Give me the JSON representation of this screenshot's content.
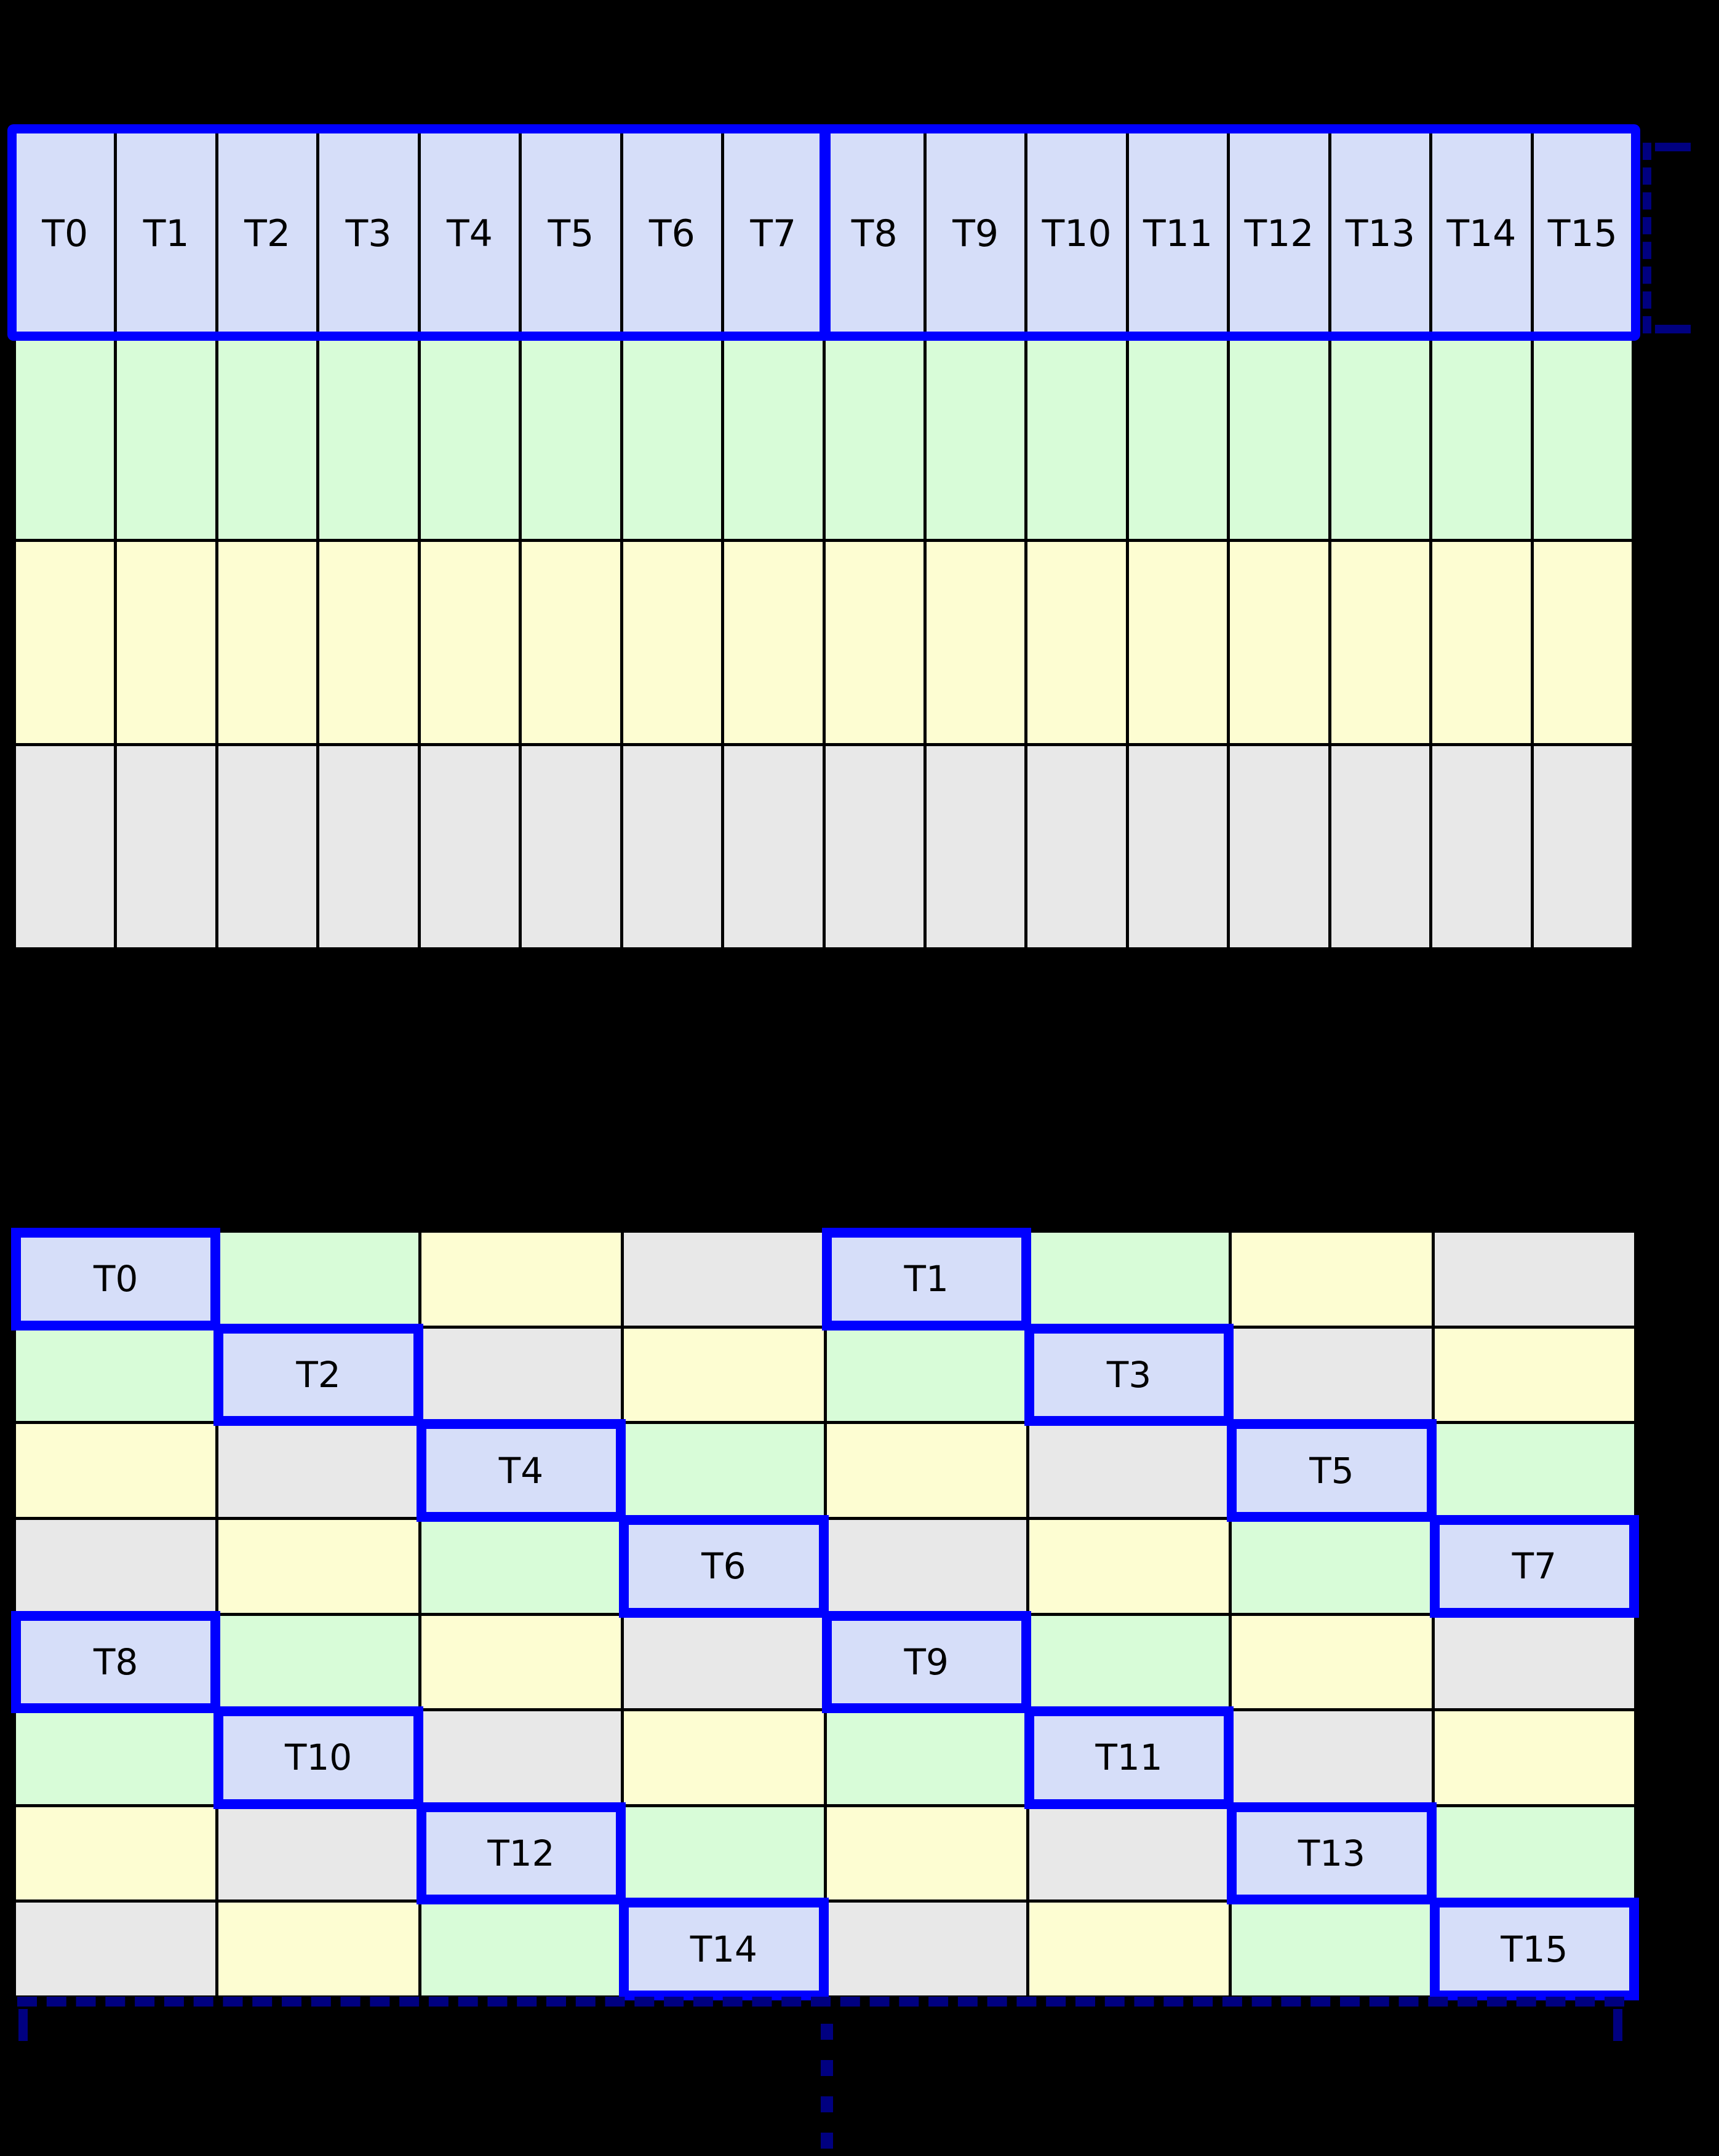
{
  "colors": {
    "background": "#000000",
    "cell_blue": "#d6def9",
    "cell_green": "#d8fcd8",
    "cell_yellow": "#fdfdd2",
    "cell_gray": "#e8e8e8",
    "highlight_border": "#0000ff",
    "bracket": "#000080",
    "gridline": "#000000",
    "label_text": "#000000"
  },
  "top_grid": {
    "cols": 16,
    "rows": 4,
    "row_colors": [
      "blue",
      "green",
      "yellow",
      "gray"
    ],
    "thread_labels": [
      "T0",
      "T1",
      "T2",
      "T3",
      "T4",
      "T5",
      "T6",
      "T7",
      "T8",
      "T9",
      "T10",
      "T11",
      "T12",
      "T13",
      "T14",
      "T15"
    ]
  },
  "bottom_grid": {
    "cols": 8,
    "rows": 8,
    "cells": [
      [
        {
          "color": "blue",
          "label": "T0"
        },
        {
          "color": "green"
        },
        {
          "color": "yellow"
        },
        {
          "color": "gray"
        },
        {
          "color": "blue",
          "label": "T1"
        },
        {
          "color": "green"
        },
        {
          "color": "yellow"
        },
        {
          "color": "gray"
        }
      ],
      [
        {
          "color": "green"
        },
        {
          "color": "blue",
          "label": "T2"
        },
        {
          "color": "gray"
        },
        {
          "color": "yellow"
        },
        {
          "color": "green"
        },
        {
          "color": "blue",
          "label": "T3"
        },
        {
          "color": "gray"
        },
        {
          "color": "yellow"
        }
      ],
      [
        {
          "color": "yellow"
        },
        {
          "color": "gray"
        },
        {
          "color": "blue",
          "label": "T4"
        },
        {
          "color": "green"
        },
        {
          "color": "yellow"
        },
        {
          "color": "gray"
        },
        {
          "color": "blue",
          "label": "T5"
        },
        {
          "color": "green"
        }
      ],
      [
        {
          "color": "gray"
        },
        {
          "color": "yellow"
        },
        {
          "color": "green"
        },
        {
          "color": "blue",
          "label": "T6"
        },
        {
          "color": "gray"
        },
        {
          "color": "yellow"
        },
        {
          "color": "green"
        },
        {
          "color": "blue",
          "label": "T7"
        }
      ],
      [
        {
          "color": "blue",
          "label": "T8"
        },
        {
          "color": "green"
        },
        {
          "color": "yellow"
        },
        {
          "color": "gray"
        },
        {
          "color": "blue",
          "label": "T9"
        },
        {
          "color": "green"
        },
        {
          "color": "yellow"
        },
        {
          "color": "gray"
        }
      ],
      [
        {
          "color": "green"
        },
        {
          "color": "blue",
          "label": "T10"
        },
        {
          "color": "gray"
        },
        {
          "color": "yellow"
        },
        {
          "color": "green"
        },
        {
          "color": "blue",
          "label": "T11"
        },
        {
          "color": "gray"
        },
        {
          "color": "yellow"
        }
      ],
      [
        {
          "color": "yellow"
        },
        {
          "color": "gray"
        },
        {
          "color": "blue",
          "label": "T12"
        },
        {
          "color": "green"
        },
        {
          "color": "yellow"
        },
        {
          "color": "gray"
        },
        {
          "color": "blue",
          "label": "T13"
        },
        {
          "color": "green"
        }
      ],
      [
        {
          "color": "gray"
        },
        {
          "color": "yellow"
        },
        {
          "color": "green"
        },
        {
          "color": "blue",
          "label": "T14"
        },
        {
          "color": "gray"
        },
        {
          "color": "yellow"
        },
        {
          "color": "green"
        },
        {
          "color": "blue",
          "label": "T15"
        }
      ]
    ]
  },
  "ellipsis": {
    "dash_count": 4
  }
}
